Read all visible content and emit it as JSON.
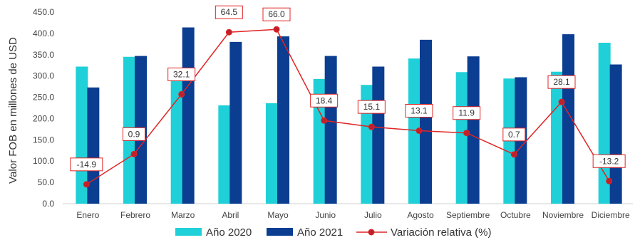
{
  "chart_data": {
    "type": "bar",
    "ylabel": "Valor FOB en millones de USD",
    "ylim": [
      0,
      450
    ],
    "yticks": [
      "0.0",
      "50.0",
      "100.0",
      "150.0",
      "200.0",
      "250.0",
      "300.0",
      "350.0",
      "400.0",
      "450.0"
    ],
    "categories": [
      "Enero",
      "Febrero",
      "Marzo",
      "Abril",
      "Mayo",
      "Junio",
      "Julio",
      "Agosto",
      "Septiembre",
      "Octubre",
      "Noviembre",
      "Diciembre"
    ],
    "series": [
      {
        "name": "Año 2020",
        "type": "bar",
        "color": "#1fd0d8",
        "values": [
          322,
          345,
          313,
          231,
          236,
          293,
          279,
          341,
          309,
          294,
          310,
          378
        ]
      },
      {
        "name": "Año 2021",
        "type": "bar",
        "color": "#0b3d91",
        "values": [
          273,
          347,
          414,
          380,
          393,
          347,
          322,
          385,
          346,
          297,
          398,
          327
        ]
      },
      {
        "name": "Variación relativa (%)",
        "type": "line",
        "color": "#e02424",
        "values": [
          -14.9,
          0.9,
          32.1,
          64.5,
          66.0,
          18.4,
          15.1,
          13.1,
          11.9,
          0.7,
          28.1,
          -13.2
        ],
        "labels": [
          "-14.9",
          "0.9",
          "32.1",
          "64.5",
          "66.0",
          "18.4",
          "15.1",
          "13.1",
          "11.9",
          "0.7",
          "28.1",
          "-13.2"
        ]
      }
    ],
    "legend_position": "bottom",
    "grid": false
  }
}
